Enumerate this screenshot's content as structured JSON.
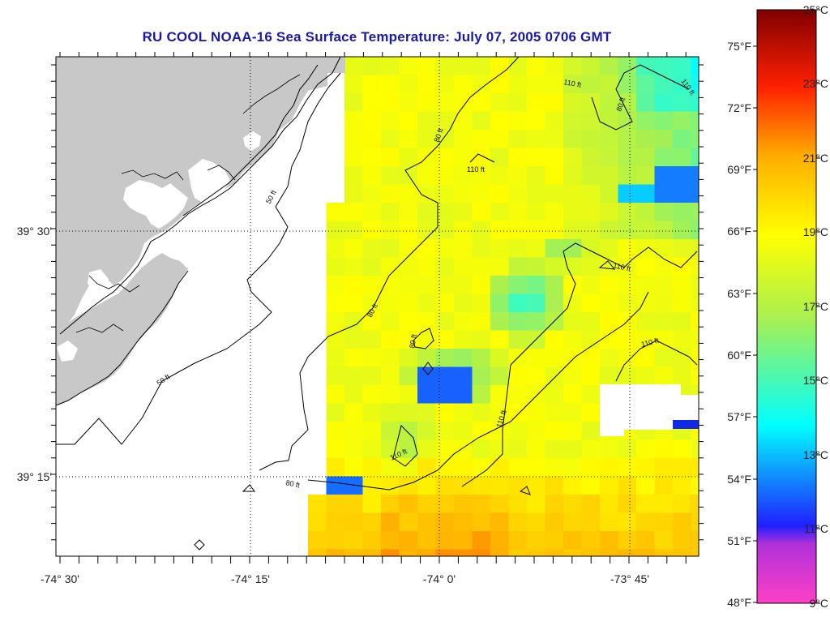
{
  "title": "RU COOL  NOAA-16  Sea Surface Temperature:  July 07, 2005 0706 GMT",
  "axes": {
    "x_ticks": [
      "-74° 30'",
      "-74° 15'",
      "-74° 0'",
      "-73° 45'"
    ],
    "y_ticks": [
      "39° 30'",
      "39° 15'"
    ]
  },
  "depth_contours": {
    "labels": [
      "50 ft",
      "50 ft",
      "80 ft",
      "80 ft",
      "80 ft",
      "80 ft",
      "110 ft",
      "110 ft",
      "110 ft",
      "110 ft",
      "110 ft",
      "110 ft",
      "110 ft"
    ]
  },
  "colorbar": {
    "celsius": [
      "25°C",
      "23°C",
      "21°C",
      "19°C",
      "17°C",
      "15°C",
      "13°C",
      "11°C",
      "9°C"
    ],
    "fahrenheit": [
      "75°F",
      "72°F",
      "69°F",
      "66°F",
      "63°F",
      "60°F",
      "57°F",
      "54°F",
      "51°F",
      "48°F"
    ],
    "range_c": [
      9,
      25
    ]
  },
  "colors": {
    "land": "#c8c8c8",
    "title": "#1a1aa8"
  }
}
